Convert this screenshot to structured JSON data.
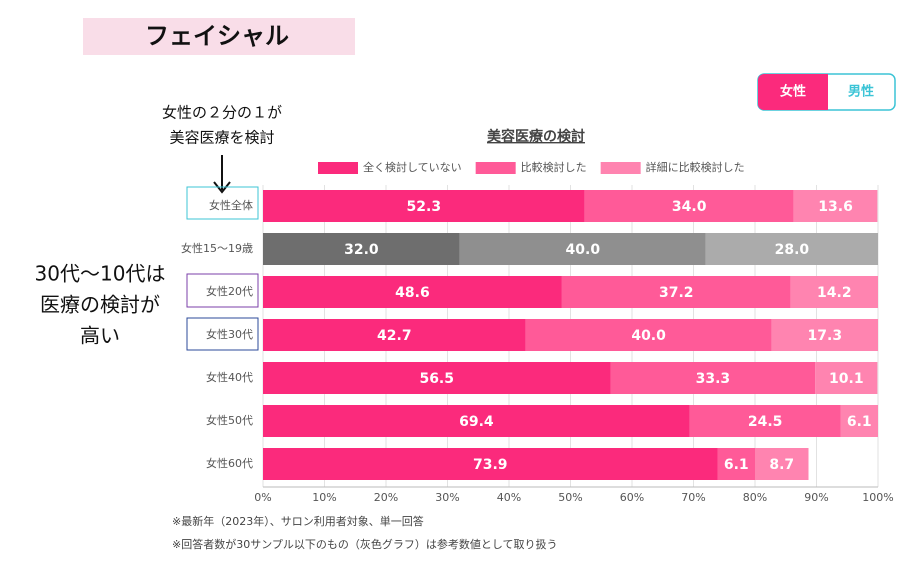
{
  "header": {
    "title": "フェイシャル"
  },
  "toggle": [
    "女性",
    "男性"
  ],
  "annotations": {
    "top": [
      "女性の２分の１が",
      "美容医療を検討"
    ],
    "left": [
      "30代〜10代は",
      "医療の検討が",
      "高い"
    ]
  },
  "footnotes": [
    "※最新年（2023年）、サロン利用者対象、単一回答",
    "※回答者数が30サンプル以下のもの（灰色グラフ）は参考数値として取り扱う"
  ],
  "chart_data": {
    "type": "bar",
    "orientation": "horizontal",
    "stacked": true,
    "title": "美容医療の検討",
    "categories": [
      "女性全体",
      "女性15〜19歳",
      "女性20代",
      "女性30代",
      "女性40代",
      "女性50代",
      "女性60代"
    ],
    "series": [
      {
        "name": "全く検討していない",
        "color": "#fb2a7c",
        "colors": [
          "#fb2a7c",
          "#6e6e6e",
          "#fb2a7c",
          "#fb2a7c",
          "#fb2a7c",
          "#fb2a7c",
          "#fb2a7c"
        ],
        "values": [
          52.3,
          32.0,
          48.6,
          42.7,
          56.5,
          69.4,
          73.9
        ],
        "value_labels": [
          "52.3",
          "32.0",
          "48.6",
          "42.7",
          "56.5",
          "69.4",
          "73.9"
        ]
      },
      {
        "name": "比較検討した",
        "color": "#ff5a98",
        "colors": [
          "#ff5a98",
          "#8f8f8f",
          "#ff5a98",
          "#ff5a98",
          "#ff5a98",
          "#ff5a98",
          "#ff5a98"
        ],
        "values": [
          34.0,
          40.0,
          37.2,
          40.0,
          33.3,
          24.5,
          6.1
        ],
        "value_labels": [
          "34.0",
          "40.0",
          "37.2",
          "40.0",
          "33.3",
          "24.5",
          "6.1"
        ]
      },
      {
        "name": "詳細に比較検討した",
        "color": "#ff84b0",
        "colors": [
          "#ff84b0",
          "#ababab",
          "#ff84b0",
          "#ff84b0",
          "#ff84b0",
          "#ff84b0",
          "#ff84b0"
        ],
        "values": [
          13.6,
          28.0,
          14.2,
          17.3,
          10.1,
          6.1,
          8.7
        ],
        "value_labels": [
          "13.6",
          "28.0",
          "14.2",
          "17.3",
          "10.1",
          "6.1",
          "8.7"
        ]
      }
    ],
    "xlim": [
      0,
      100
    ],
    "xticks": [
      {
        "value": 0,
        "label": "0%"
      },
      {
        "value": 10,
        "label": "10%"
      },
      {
        "value": 20,
        "label": "20%"
      },
      {
        "value": 30,
        "label": "30%"
      },
      {
        "value": 40,
        "label": "40%"
      },
      {
        "value": 50,
        "label": "50%"
      },
      {
        "value": 60,
        "label": "60%"
      },
      {
        "value": 70,
        "label": "70%"
      },
      {
        "value": 80,
        "label": "80%"
      },
      {
        "value": 90,
        "label": "90%"
      },
      {
        "value": 100,
        "label": "100%"
      }
    ],
    "grid": true
  }
}
